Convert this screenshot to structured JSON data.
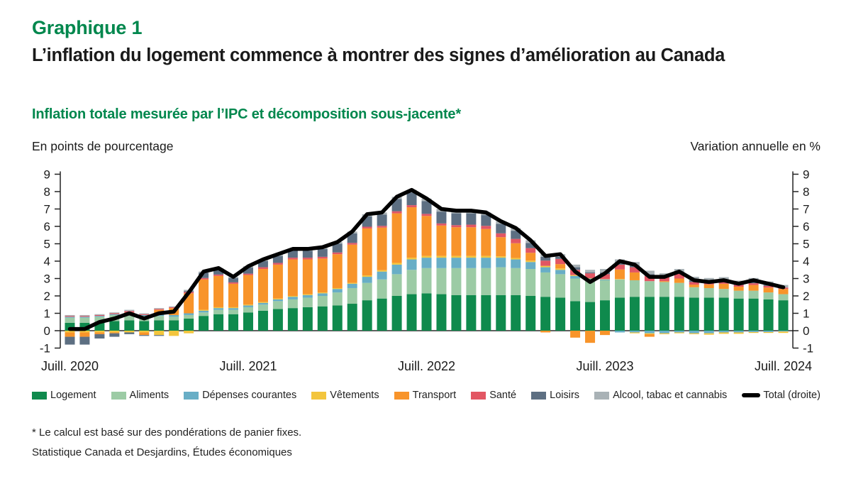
{
  "header": {
    "kicker": "Graphique 1",
    "title": "L’inflation du logement commence à montrer des signes d’amélioration au Canada",
    "subtitle": "Inflation totale mesurée par l’IPC et décomposition sous-jacente*"
  },
  "axis_captions": {
    "left": "En points de pourcentage",
    "right": "Variation annuelle en %"
  },
  "footnotes": {
    "asterisk": "* Le calcul est basé sur des pondérations de panier fixes.",
    "source": "Statistique Canada et Desjardins, Études économiques"
  },
  "colors": {
    "accent_green": "#00874d",
    "text": "#1a1a1a",
    "axis": "#222222",
    "total_line": "#000000"
  },
  "chart_data": {
    "type": "bar",
    "subtype": "stacked-bar-with-line-overlay",
    "title": "Inflation totale mesurée par l’IPC et décomposition sous-jacente",
    "xlabel": "",
    "ylabel_left": "En points de pourcentage",
    "ylabel_right": "Variation annuelle en %",
    "ylim": [
      -1,
      9
    ],
    "yticks": [
      9,
      8,
      7,
      6,
      5,
      4,
      3,
      2,
      1,
      0,
      -1
    ],
    "grid": false,
    "legend_position": "bottom",
    "x_ticks": [
      {
        "label": "Juill. 2020",
        "index": 0
      },
      {
        "label": "Juill. 2021",
        "index": 12
      },
      {
        "label": "Juill. 2022",
        "index": 24
      },
      {
        "label": "Juill. 2023",
        "index": 36
      },
      {
        "label": "Juill. 2024",
        "index": 48
      }
    ],
    "categories": [
      "Juil. 2020",
      "Août 2020",
      "Sept. 2020",
      "Oct. 2020",
      "Nov. 2020",
      "Déc. 2020",
      "Janv. 2021",
      "Févr. 2021",
      "Mars 2021",
      "Avr. 2021",
      "Mai 2021",
      "Juin 2021",
      "Juil. 2021",
      "Août 2021",
      "Sept. 2021",
      "Oct. 2021",
      "Nov. 2021",
      "Déc. 2021",
      "Janv. 2022",
      "Févr. 2022",
      "Mars 2022",
      "Avr. 2022",
      "Mai 2022",
      "Juin 2022",
      "Juil. 2022",
      "Août 2022",
      "Sept. 2022",
      "Oct. 2022",
      "Nov. 2022",
      "Déc. 2022",
      "Janv. 2023",
      "Févr. 2023",
      "Mars 2023",
      "Avr. 2023",
      "Mai 2023",
      "Juin 2023",
      "Juil. 2023",
      "Août 2023",
      "Sept. 2023",
      "Oct. 2023",
      "Nov. 2023",
      "Déc. 2023",
      "Janv. 2024",
      "Févr. 2024",
      "Mars 2024",
      "Avr. 2024",
      "Mai 2024",
      "Juin 2024",
      "Juil. 2024"
    ],
    "series": [
      {
        "name": "Logement",
        "color": "#0f8a4d",
        "values": [
          0.45,
          0.45,
          0.5,
          0.55,
          0.6,
          0.55,
          0.6,
          0.6,
          0.7,
          0.85,
          0.95,
          0.95,
          1.05,
          1.15,
          1.25,
          1.3,
          1.35,
          1.4,
          1.45,
          1.55,
          1.75,
          1.85,
          2.0,
          2.1,
          2.15,
          2.1,
          2.05,
          2.05,
          2.05,
          2.05,
          2.05,
          2.0,
          1.95,
          1.9,
          1.7,
          1.65,
          1.75,
          1.9,
          1.95,
          1.95,
          1.95,
          1.95,
          1.9,
          1.9,
          1.9,
          1.85,
          1.85,
          1.8,
          1.75
        ]
      },
      {
        "name": "Aliments",
        "color": "#9ccba5",
        "values": [
          0.3,
          0.3,
          0.3,
          0.35,
          0.35,
          0.3,
          0.25,
          0.2,
          0.2,
          0.2,
          0.25,
          0.25,
          0.3,
          0.35,
          0.45,
          0.5,
          0.55,
          0.6,
          0.75,
          0.9,
          1.0,
          1.1,
          1.25,
          1.4,
          1.45,
          1.5,
          1.55,
          1.55,
          1.55,
          1.6,
          1.55,
          1.55,
          1.4,
          1.35,
          1.3,
          1.25,
          1.15,
          1.05,
          0.95,
          0.9,
          0.85,
          0.8,
          0.6,
          0.55,
          0.5,
          0.45,
          0.45,
          0.4,
          0.35
        ]
      },
      {
        "name": "Dépenses courantes",
        "color": "#68aec6",
        "values": [
          0.05,
          0.05,
          0.05,
          0.05,
          0.05,
          0.05,
          0.1,
          0.1,
          0.1,
          0.1,
          0.1,
          0.1,
          0.1,
          0.1,
          0.1,
          0.15,
          0.15,
          0.15,
          0.2,
          0.25,
          0.35,
          0.45,
          0.55,
          0.6,
          0.6,
          0.6,
          0.6,
          0.6,
          0.6,
          0.55,
          0.5,
          0.4,
          0.3,
          0.25,
          0.15,
          0.1,
          0.05,
          -0.1,
          -0.1,
          -0.15,
          -0.15,
          -0.1,
          -0.15,
          -0.15,
          -0.1,
          -0.1,
          -0.08,
          -0.08,
          -0.05
        ]
      },
      {
        "name": "Vêtements",
        "color": "#f3c53d",
        "values": [
          -0.1,
          -0.1,
          -0.1,
          -0.1,
          -0.1,
          -0.1,
          -0.25,
          -0.3,
          -0.15,
          0.05,
          0.05,
          0.05,
          0.05,
          0.05,
          0.05,
          0.05,
          0.05,
          0.05,
          0.05,
          0.05,
          0.08,
          0.08,
          0.1,
          0.1,
          0.1,
          0.1,
          0.1,
          0.1,
          0.1,
          0.08,
          0.08,
          0.08,
          0.08,
          0.08,
          0.05,
          0.02,
          0.02,
          0.02,
          -0.05,
          -0.05,
          -0.05,
          -0.05,
          -0.05,
          -0.08,
          -0.08,
          -0.08,
          -0.05,
          -0.05,
          -0.08
        ]
      },
      {
        "name": "Transport",
        "color": "#f8942a",
        "values": [
          -0.25,
          -0.25,
          -0.1,
          -0.05,
          0.05,
          -0.15,
          0.25,
          0.4,
          1.15,
          1.75,
          1.8,
          1.35,
          1.7,
          1.9,
          1.95,
          2.1,
          2.0,
          1.95,
          1.95,
          2.2,
          2.7,
          2.45,
          2.85,
          2.9,
          2.3,
          1.75,
          1.65,
          1.65,
          1.55,
          1.1,
          0.85,
          0.45,
          -0.1,
          0.25,
          -0.4,
          -0.7,
          -0.25,
          0.55,
          0.45,
          -0.15,
          0.05,
          0.25,
          0.15,
          0.21,
          0.3,
          0.23,
          0.33,
          0.28,
          0.3
        ]
      },
      {
        "name": "Santé",
        "color": "#e25663",
        "values": [
          0.05,
          0.05,
          0.05,
          0.05,
          0.08,
          0.05,
          0.05,
          0.05,
          0.08,
          0.08,
          0.08,
          0.08,
          0.08,
          0.1,
          0.1,
          0.1,
          0.1,
          0.1,
          0.1,
          0.1,
          0.1,
          0.1,
          0.12,
          0.12,
          0.12,
          0.12,
          0.12,
          0.15,
          0.18,
          0.22,
          0.25,
          0.27,
          0.3,
          0.3,
          0.3,
          0.28,
          0.28,
          0.28,
          0.3,
          0.3,
          0.23,
          0.28,
          0.15,
          0.12,
          0.12,
          0.1,
          0.1,
          0.1,
          0.08
        ]
      },
      {
        "name": "Loisirs",
        "color": "#5d6f82",
        "values": [
          -0.45,
          -0.45,
          -0.25,
          -0.2,
          -0.1,
          -0.05,
          -0.05,
          0.0,
          0.05,
          0.3,
          0.3,
          0.25,
          0.35,
          0.35,
          0.4,
          0.4,
          0.4,
          0.45,
          0.5,
          0.55,
          0.6,
          0.65,
          0.7,
          0.73,
          0.73,
          0.68,
          0.68,
          0.65,
          0.62,
          0.55,
          0.47,
          0.3,
          0.22,
          0.12,
          0.15,
          0.05,
          0.1,
          0.1,
          0.1,
          0.1,
          0.02,
          0.07,
          0.1,
          0.05,
          0.06,
          0.05,
          0.1,
          0.05,
          0.0
        ]
      },
      {
        "name": "Alcool, tabac et cannabis",
        "color": "#a9b2b6",
        "values": [
          0.05,
          0.05,
          0.05,
          0.05,
          0.07,
          0.05,
          0.05,
          0.05,
          0.07,
          0.07,
          0.07,
          0.07,
          0.07,
          0.1,
          0.1,
          0.1,
          0.1,
          0.1,
          0.1,
          0.1,
          0.12,
          0.12,
          0.13,
          0.15,
          0.15,
          0.15,
          0.15,
          0.15,
          0.15,
          0.15,
          0.15,
          0.15,
          0.15,
          0.15,
          0.15,
          0.15,
          0.2,
          0.2,
          0.2,
          0.2,
          0.2,
          0.2,
          0.2,
          0.2,
          0.2,
          0.2,
          0.2,
          0.2,
          0.15
        ]
      }
    ],
    "line_series": {
      "name": "Total (droite)",
      "color": "#000000",
      "axis": "right",
      "values": [
        0.1,
        0.1,
        0.5,
        0.7,
        1.0,
        0.7,
        1.0,
        1.1,
        2.2,
        3.4,
        3.6,
        3.1,
        3.7,
        4.1,
        4.4,
        4.7,
        4.7,
        4.8,
        5.1,
        5.7,
        6.7,
        6.8,
        7.7,
        8.1,
        7.6,
        7.0,
        6.9,
        6.9,
        6.8,
        6.3,
        5.9,
        5.2,
        4.3,
        4.4,
        3.4,
        2.8,
        3.3,
        4.0,
        3.8,
        3.1,
        3.1,
        3.4,
        2.9,
        2.8,
        2.9,
        2.7,
        2.9,
        2.7,
        2.5
      ]
    }
  }
}
